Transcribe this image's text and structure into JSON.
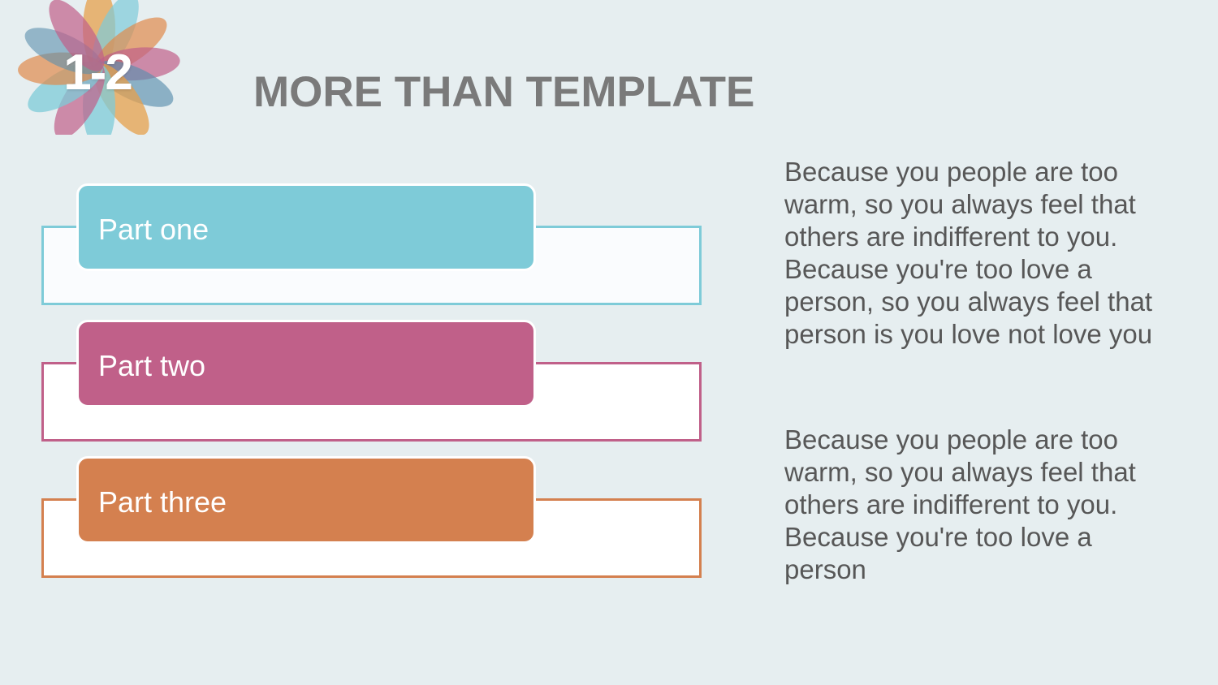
{
  "slide": {
    "section_number": "1-2",
    "title": "MORE THAN TEMPLATE"
  },
  "parts": [
    {
      "label": "Part one",
      "color": "#7ecbd8"
    },
    {
      "label": "Part two",
      "color": "#c06089"
    },
    {
      "label": "Part three",
      "color": "#d4804f"
    }
  ],
  "paragraphs": [
    "Because you people are too warm, so you always feel that others are indifferent to you. Because you're too love a person, so you always feel that person is you love not love you",
    "Because you people are too warm, so you always feel that others are indifferent to you. Because you're too love a person"
  ],
  "icons": {
    "logo": "flower-petals-icon"
  },
  "colors": {
    "background": "#e6eef0",
    "title": "#7a7a7a",
    "body_text": "#575757",
    "petal_blue": "#7ecbd8",
    "petal_pink": "#c06089",
    "petal_orange": "#e0a35a"
  }
}
